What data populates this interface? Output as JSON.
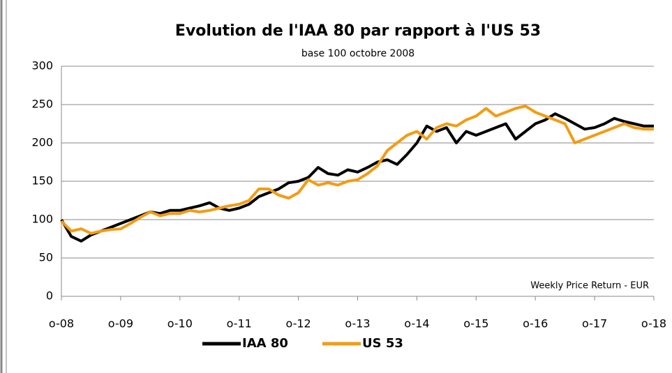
{
  "chart_data": {
    "type": "line",
    "title": "Evolution de l'IAA 80 par rapport à l'US 53",
    "subtitle": "base 100 octobre 2008",
    "annotation": "Weekly Price Return - EUR",
    "categories": [
      "o-08",
      null,
      null,
      null,
      null,
      null,
      "o-09",
      null,
      null,
      null,
      null,
      null,
      "o-10",
      null,
      null,
      null,
      null,
      null,
      "o-11",
      null,
      null,
      null,
      null,
      null,
      "o-12",
      null,
      null,
      null,
      null,
      null,
      "o-13",
      null,
      null,
      null,
      null,
      null,
      "o-14",
      null,
      null,
      null,
      null,
      null,
      "o-15",
      null,
      null,
      null,
      null,
      null,
      "o-16",
      null,
      null,
      null,
      null,
      null,
      "o-17",
      null,
      null,
      null,
      null,
      null,
      "o-18"
    ],
    "series": [
      {
        "name": "IAA 80",
        "color": "#000000",
        "values": [
          100,
          78,
          72,
          80,
          85,
          90,
          95,
          100,
          105,
          110,
          108,
          112,
          112,
          115,
          118,
          122,
          115,
          112,
          115,
          120,
          130,
          135,
          140,
          148,
          150,
          155,
          168,
          160,
          158,
          165,
          162,
          168,
          175,
          178,
          172,
          185,
          200,
          222,
          215,
          220,
          200,
          215,
          210,
          215,
          220,
          225,
          205,
          215,
          225,
          230,
          238,
          232,
          225,
          218,
          220,
          225,
          232,
          228,
          225,
          222,
          222
        ]
      },
      {
        "name": "US 53",
        "color": "#f39c12",
        "values": [
          98,
          85,
          88,
          82,
          85,
          87,
          88,
          95,
          103,
          110,
          105,
          108,
          108,
          112,
          110,
          112,
          115,
          118,
          120,
          125,
          140,
          140,
          132,
          128,
          135,
          152,
          145,
          148,
          145,
          150,
          152,
          160,
          170,
          190,
          200,
          210,
          215,
          205,
          220,
          225,
          222,
          230,
          235,
          245,
          235,
          240,
          245,
          248,
          240,
          235,
          230,
          225,
          200,
          205,
          210,
          215,
          220,
          225,
          220,
          218,
          218
        ]
      }
    ],
    "ylim": [
      0,
      300
    ],
    "yticks": [
      0,
      50,
      100,
      150,
      200,
      250,
      300
    ],
    "grid": true,
    "legend": "bottom"
  }
}
